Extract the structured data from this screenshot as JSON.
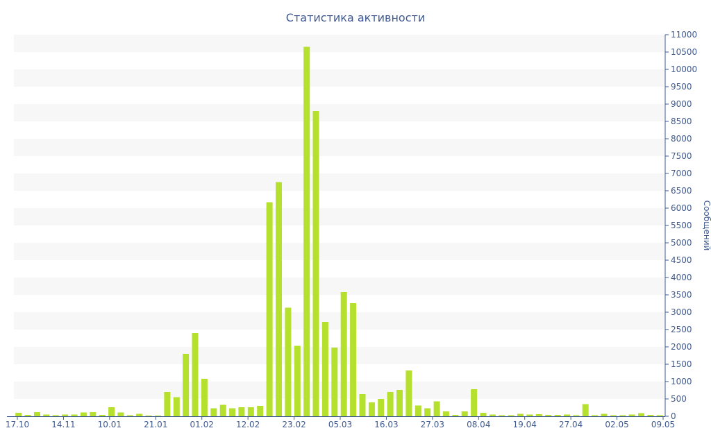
{
  "chart_data": {
    "type": "bar",
    "title": "Статистика активности",
    "xlabel": "",
    "ylabel": "Сообщений",
    "ylim": [
      0,
      11000
    ],
    "y_ticks": [
      0,
      500,
      1000,
      1500,
      2000,
      2500,
      3000,
      3500,
      4000,
      4500,
      5000,
      5500,
      6000,
      6500,
      7000,
      7500,
      8000,
      8500,
      9000,
      9500,
      10000,
      10500,
      11000
    ],
    "x_tick_labels": [
      "17.10",
      "14.11",
      "10.01",
      "21.01",
      "01.02",
      "12.02",
      "23.02",
      "05.03",
      "16.03",
      "27.03",
      "08.04",
      "19.04",
      "27.04",
      "02.05",
      "09.05"
    ],
    "y_axis_position": "right",
    "grid": "alternating horizontal bands",
    "legend": "none",
    "colors": {
      "bar": "#b5e02d",
      "band": "#f7f7f7",
      "text": "#3f5a91",
      "axis": "#3f5a91"
    },
    "values": [
      100,
      40,
      120,
      50,
      30,
      50,
      50,
      110,
      120,
      40,
      260,
      110,
      30,
      70,
      20,
      20,
      700,
      550,
      1800,
      2400,
      1080,
      230,
      330,
      230,
      260,
      260,
      300,
      6170,
      6750,
      3130,
      2030,
      10650,
      8800,
      2720,
      1980,
      3580,
      3260,
      640,
      400,
      500,
      700,
      760,
      1320,
      310,
      230,
      430,
      140,
      40,
      140,
      780,
      100,
      50,
      30,
      30,
      70,
      50,
      60,
      40,
      40,
      50,
      30,
      350,
      30,
      70,
      30,
      30,
      50,
      90,
      40,
      30
    ]
  }
}
